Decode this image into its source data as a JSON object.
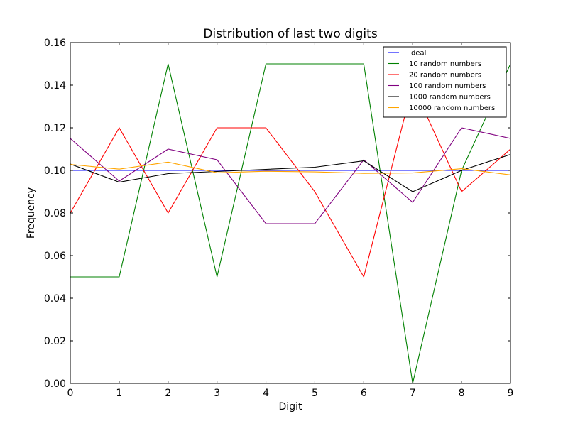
{
  "chart_data": {
    "type": "line",
    "title": "Distribution of last two digits",
    "xlabel": "Digit",
    "ylabel": "Frequency",
    "x": [
      0,
      1,
      2,
      3,
      4,
      5,
      6,
      7,
      8,
      9
    ],
    "xlim": [
      0,
      9
    ],
    "ylim": [
      0,
      0.16
    ],
    "xticks": [
      "0",
      "1",
      "2",
      "3",
      "4",
      "5",
      "6",
      "7",
      "8",
      "9"
    ],
    "yticks": [
      "0.00",
      "0.02",
      "0.04",
      "0.06",
      "0.08",
      "0.10",
      "0.12",
      "0.14",
      "0.16"
    ],
    "grid": false,
    "legend_position": "top-right",
    "series": [
      {
        "name": "Ideal",
        "color": "#0000ff",
        "values": [
          0.1,
          0.1,
          0.1,
          0.1,
          0.1,
          0.1,
          0.1,
          0.1,
          0.1,
          0.1
        ]
      },
      {
        "name": "10 random numbers",
        "color": "#008000",
        "values": [
          0.05,
          0.05,
          0.15,
          0.05,
          0.15,
          0.15,
          0.15,
          0.0,
          0.1,
          0.15
        ]
      },
      {
        "name": "20 random numbers",
        "color": "#ff0000",
        "values": [
          0.08,
          0.12,
          0.08,
          0.12,
          0.12,
          0.09,
          0.05,
          0.14,
          0.09,
          0.11
        ]
      },
      {
        "name": "100 random numbers",
        "color": "#800080",
        "values": [
          0.115,
          0.095,
          0.11,
          0.105,
          0.075,
          0.075,
          0.105,
          0.085,
          0.12,
          0.115
        ]
      },
      {
        "name": "1000 random numbers",
        "color": "#000000",
        "values": [
          0.103,
          0.0945,
          0.0985,
          0.0995,
          0.1005,
          0.1015,
          0.1045,
          0.09,
          0.1,
          0.1075
        ]
      },
      {
        "name": "10000 random numbers",
        "color": "#ffa500",
        "values": [
          0.1028,
          0.1006,
          0.1039,
          0.0989,
          0.0996,
          0.0993,
          0.0986,
          0.0988,
          0.1008,
          0.0979
        ]
      }
    ]
  }
}
